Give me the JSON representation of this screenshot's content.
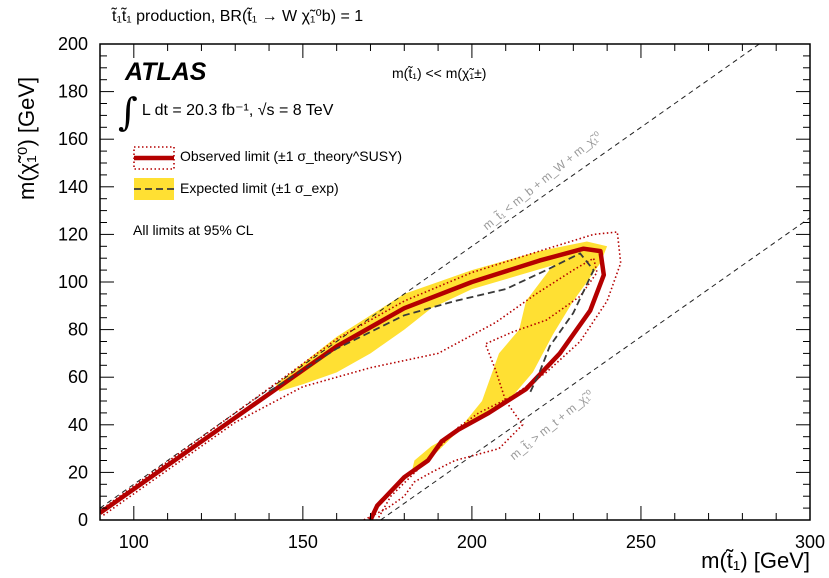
{
  "chart_data": {
    "type": "line",
    "title": "t̃₁t̃₁ production, BR(t̃₁ → W χ̃₁⁰b) = 1",
    "xlabel": "m(t̃₁) [GeV]",
    "ylabel": "m(χ̃₁⁰) [GeV]",
    "xlim": [
      90,
      300
    ],
    "ylim": [
      0,
      200
    ],
    "x_ticks": [
      100,
      150,
      200,
      250,
      300
    ],
    "y_ticks": [
      0,
      20,
      40,
      60,
      80,
      100,
      120,
      140,
      160,
      180,
      200
    ],
    "grid": false,
    "legend_position": "top-left",
    "colors": {
      "observed": "#b40000",
      "expected_band": "#ffe033",
      "expected_line": "#3a3a3a",
      "diagonal": "#222222",
      "diagonal_label": "#9a9a9a"
    },
    "atlas_label": "ATLAS",
    "luminosity_label": "L dt = 20.3 fb⁻¹, √s = 8 TeV",
    "mass_hierarchy_label": "m(t̃₁) << m(χ̃₁±)",
    "confidence_note": "All limits at 95% CL",
    "series": [
      {
        "name": "Observed limit (±1 σ_theory^SUSY)",
        "style": "solid",
        "x": [
          90,
          130,
          160,
          180,
          200,
          220,
          233,
          238,
          239,
          235,
          226,
          216,
          205,
          196,
          191,
          187,
          180,
          172,
          170
        ],
        "y": [
          3,
          43,
          73,
          89,
          100,
          109,
          114,
          113,
          103,
          88,
          70,
          55,
          45,
          38,
          33,
          25,
          18,
          6,
          0
        ]
      },
      {
        "name": "Observed +1σ theory",
        "style": "dotted",
        "x": [
          90,
          130,
          160,
          180,
          200,
          220,
          236,
          243,
          244,
          240,
          232,
          222,
          212,
          202,
          196,
          192,
          186,
          176,
          172
        ],
        "y": [
          4,
          45,
          76,
          92,
          104,
          113,
          120,
          121,
          108,
          92,
          75,
          62,
          52,
          45,
          39,
          33,
          24,
          10,
          0
        ]
      },
      {
        "name": "Observed -1σ theory",
        "style": "dotted",
        "x": [
          91,
          130,
          150,
          170,
          190,
          207,
          219,
          230,
          236,
          237,
          232,
          222,
          212,
          204,
          207,
          210,
          215,
          208,
          195,
          188,
          183,
          180,
          175,
          168
        ],
        "y": [
          2,
          41,
          56,
          64,
          70,
          83,
          95,
          105,
          110,
          104,
          94,
          84,
          79,
          74,
          63,
          50,
          40,
          30,
          25,
          20,
          16,
          10,
          5,
          0
        ]
      },
      {
        "name": "Expected limit (±1 σ_exp)",
        "style": "dashed",
        "x": [
          140,
          160,
          180,
          195,
          210,
          222,
          232,
          236,
          230,
          223,
          220,
          217
        ],
        "y": [
          54,
          72,
          86,
          92,
          97,
          105,
          112,
          105,
          87,
          73,
          62,
          53
        ]
      }
    ],
    "expected_band": {
      "x": [
        142,
        160,
        180,
        200,
        220,
        234,
        240,
        238,
        230,
        224,
        218,
        212,
        205,
        198,
        188,
        183,
        182,
        185,
        195,
        203,
        208,
        214,
        216,
        224,
        200,
        188,
        180,
        170,
        160,
        150,
        143
      ],
      "y": [
        57,
        77,
        95,
        105,
        113,
        117,
        115,
        108,
        92,
        78,
        62,
        52,
        45,
        39,
        31,
        25,
        19,
        22,
        36,
        50,
        70,
        80,
        92,
        107,
        97,
        89,
        80,
        70,
        62,
        57,
        54
      ]
    },
    "diagonals": [
      {
        "label": "m_t̃₁ < m_b + m_W + m_χ̃₁⁰",
        "x": [
          90,
          300
        ],
        "y": [
          5,
          215
        ]
      },
      {
        "label": "m_t̃₁ > m_t + m_χ̃₁⁰",
        "x": [
          173,
          300
        ],
        "y": [
          0,
          127
        ]
      }
    ],
    "legend": [
      {
        "label": "Observed limit (±1 σ_theory^SUSY)"
      },
      {
        "label": "Expected limit (±1 σ_exp)"
      }
    ]
  }
}
